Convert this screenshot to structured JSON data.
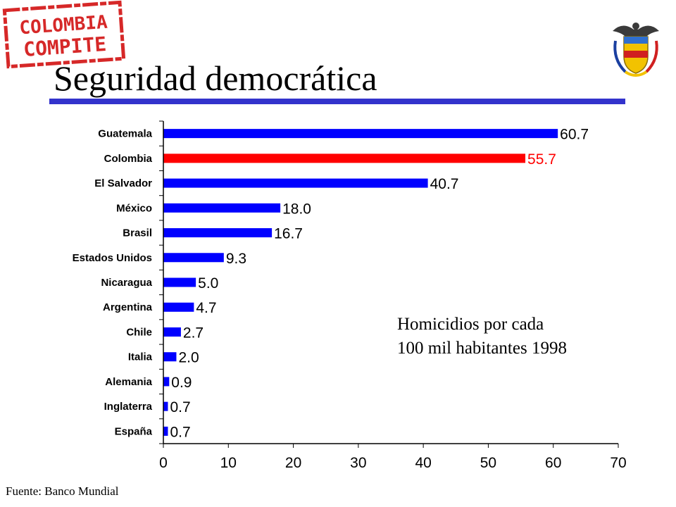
{
  "slide": {
    "title": "Seguridad democrática",
    "logo_text": [
      "COLOMBIA",
      "COMPITE"
    ],
    "annotation": [
      "Homicidios por cada",
      "100 mil habitantes 1998"
    ],
    "source": "Fuente: Banco Mundial"
  },
  "colors": {
    "accent": "#3333cc",
    "bar": "#0000ff",
    "highlight": "#ff0000",
    "stamp": "#d62828"
  },
  "chart_data": {
    "type": "bar",
    "orientation": "horizontal",
    "categories": [
      "Guatemala",
      "Colombia",
      "El Salvador",
      "México",
      "Brasil",
      "Estados Unidos",
      "Nicaragua",
      "Argentina",
      "Chile",
      "Italia",
      "Alemania",
      "Inglaterra",
      "España"
    ],
    "values": [
      60.7,
      55.7,
      40.7,
      18.0,
      16.7,
      9.3,
      5.0,
      4.7,
      2.7,
      2.0,
      0.9,
      0.7,
      0.7
    ],
    "data_labels": [
      "60.7",
      "55.7",
      "40.7",
      "18.0",
      "16.7",
      "9.3",
      "5.0",
      "4.7",
      "2.7",
      "2.0",
      "0.9",
      "0.7",
      "0.7"
    ],
    "highlight_category": "Colombia",
    "xlim": [
      0,
      70
    ],
    "xticks": [
      0,
      10,
      20,
      30,
      40,
      50,
      60,
      70
    ],
    "title": "",
    "xlabel": "",
    "ylabel": "",
    "grid": false,
    "legend": false
  }
}
